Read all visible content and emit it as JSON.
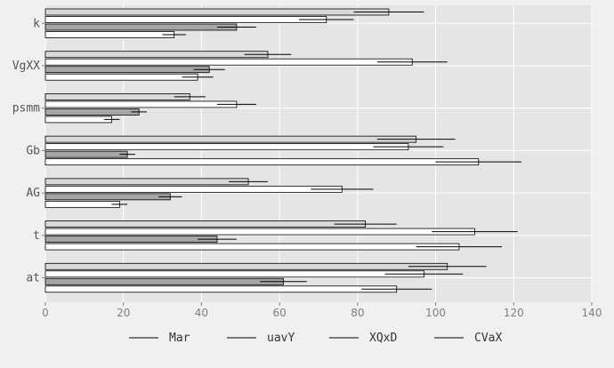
{
  "chart_data": {
    "type": "bar",
    "orientation": "horizontal",
    "title": "",
    "xlabel": "",
    "ylabel": "",
    "categories": [
      "k",
      "VgXX",
      "psmm",
      "Gb",
      "AG",
      "t",
      "at"
    ],
    "xlim": [
      0,
      140
    ],
    "xticks": [
      0,
      20,
      40,
      60,
      80,
      100,
      120,
      140
    ],
    "grid": true,
    "legend_position": "bottom",
    "series": [
      {
        "name": "Mar",
        "color": "#d9d9d9",
        "values": [
          88,
          57,
          37,
          95,
          52,
          82,
          103
        ],
        "errors": [
          9,
          6,
          4,
          10,
          5,
          8,
          10
        ]
      },
      {
        "name": "uavY",
        "color": "#ffffff",
        "values": [
          72,
          94,
          49,
          93,
          76,
          110,
          97
        ],
        "errors": [
          7,
          9,
          5,
          9,
          8,
          11,
          10
        ]
      },
      {
        "name": "XQxD",
        "color": "#a6a6a6",
        "values": [
          49,
          42,
          24,
          21,
          32,
          44,
          61
        ],
        "errors": [
          5,
          4,
          2,
          2,
          3,
          5,
          6
        ]
      },
      {
        "name": "CVaX",
        "color": "#ffffff",
        "values": [
          33,
          39,
          17,
          111,
          19,
          106,
          90
        ],
        "errors": [
          3,
          4,
          2,
          11,
          2,
          11,
          9
        ]
      }
    ]
  }
}
